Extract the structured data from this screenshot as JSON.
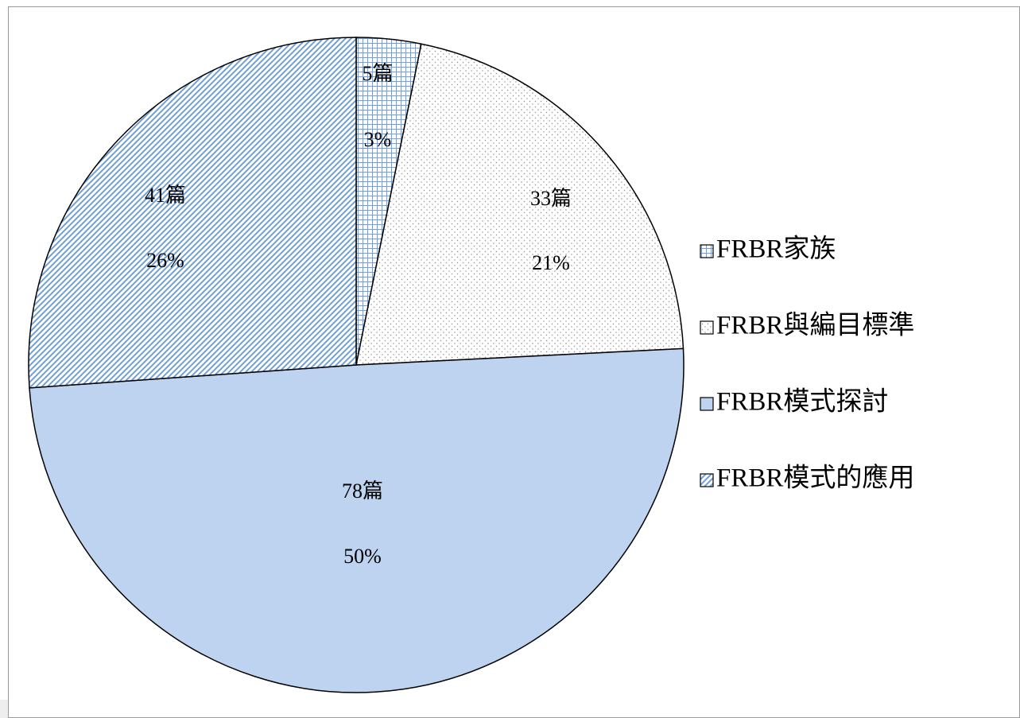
{
  "chart_data": {
    "type": "pie",
    "categories": [
      "FRBR家族",
      "FRBR與編目標準",
      "FRBR模式探討",
      "FRBR模式的應用"
    ],
    "values": [
      5,
      33,
      78,
      41
    ],
    "value_labels": [
      "5篇",
      "33篇",
      "78篇",
      "41篇"
    ],
    "percent_labels": [
      "3%",
      "21%",
      "50%",
      "26%"
    ],
    "colors": [
      "#6f9fdc",
      "#8c8c8c",
      "#bdd3ef",
      "#6f9fdc"
    ],
    "patterns": [
      "grid",
      "dots",
      "solid",
      "diagonal"
    ],
    "legend": "right"
  }
}
